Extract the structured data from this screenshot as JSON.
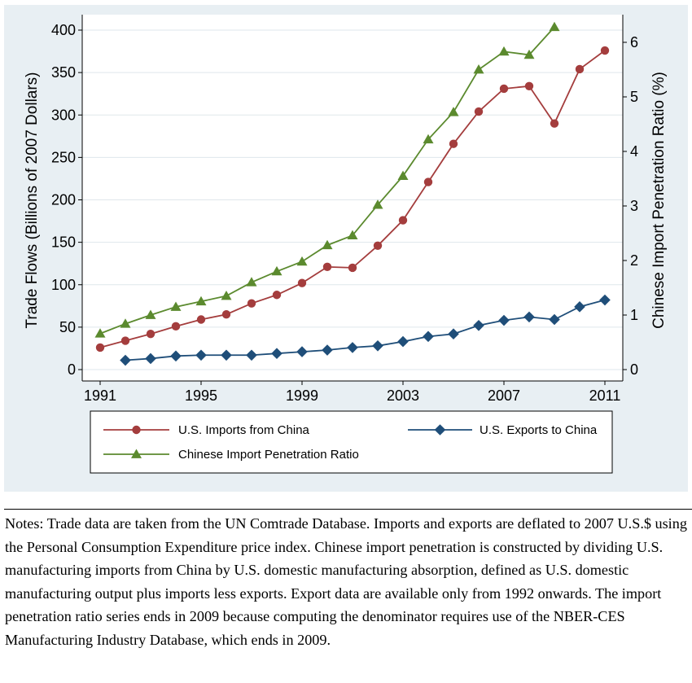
{
  "chart_data": {
    "type": "line",
    "x": [
      1991,
      1992,
      1993,
      1994,
      1995,
      1996,
      1997,
      1998,
      1999,
      2000,
      2001,
      2002,
      2003,
      2004,
      2005,
      2006,
      2007,
      2008,
      2009,
      2010,
      2011
    ],
    "xticks": [
      "1991",
      "1995",
      "1999",
      "2003",
      "2007",
      "2011"
    ],
    "ylabel": "Trade Flows (Billions of 2007 Dollars)",
    "ylim": [
      0,
      400
    ],
    "yticks": [
      "0",
      "50",
      "100",
      "150",
      "200",
      "250",
      "300",
      "350",
      "400"
    ],
    "y2label": "Chinese Import Penetration Ratio (%)",
    "y2lim": [
      0,
      6.35
    ],
    "y2ticks": [
      "0",
      "1",
      "2",
      "3",
      "4",
      "5",
      "6"
    ],
    "grid": true,
    "legend_position": "bottom",
    "series": [
      {
        "name": "U.S. Imports from China",
        "axis": "left",
        "marker": "circle",
        "color": "#a43d3d",
        "values": [
          26,
          34,
          42,
          51,
          59,
          65,
          78,
          88,
          102,
          121,
          120,
          146,
          176,
          221,
          266,
          304,
          331,
          334,
          290,
          354,
          376
        ]
      },
      {
        "name": "U.S. Exports to China",
        "axis": "left",
        "marker": "diamond",
        "color": "#1f4e79",
        "values": [
          null,
          11,
          13,
          16,
          17,
          17,
          17,
          19,
          21,
          23,
          26,
          28,
          33,
          39,
          42,
          52,
          58,
          62,
          59,
          74,
          82
        ]
      },
      {
        "name": "Chinese Import Penetration Ratio",
        "axis": "right",
        "marker": "triangle",
        "color": "#5b8a2e",
        "values": [
          0.66,
          0.84,
          1.0,
          1.15,
          1.25,
          1.35,
          1.6,
          1.8,
          1.98,
          2.28,
          2.46,
          3.02,
          3.55,
          4.22,
          4.72,
          5.5,
          5.83,
          5.77,
          6.28,
          null,
          null
        ]
      }
    ]
  },
  "notes": {
    "text": "Notes: Trade data are taken from the UN Comtrade Database. Imports and exports are deflated to 2007 U.S.$ using the Personal Consumption Expenditure price index. Chinese import penetration is constructed by dividing U.S. manufacturing imports from China by U.S. domestic manufacturing absorption, defined as U.S. domestic manufacturing output plus imports less exports. Export data are available only from 1992 onwards. The import penetration ratio series ends in 2009 because computing the denominator requires use of the NBER-CES Manufacturing Industry Database, which ends in 2009."
  }
}
